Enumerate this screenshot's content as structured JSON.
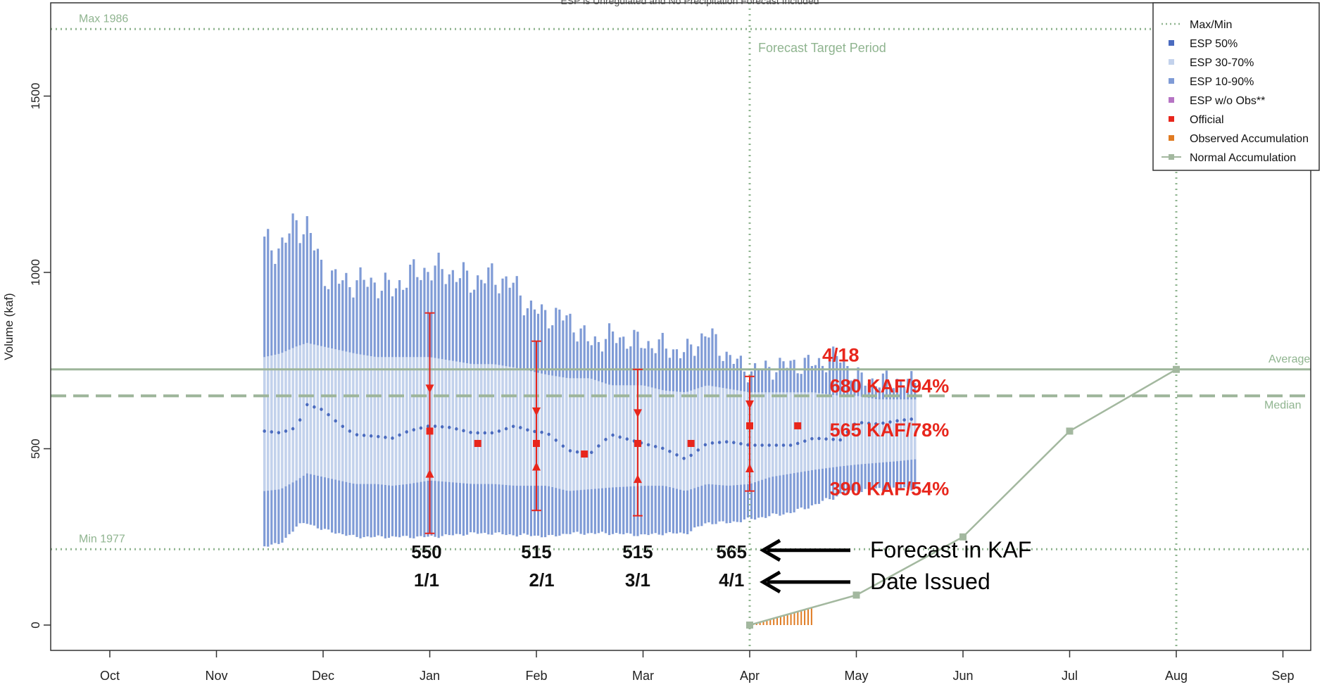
{
  "chart_data": {
    "type": "bar",
    "title": "ESP is Unregulated and No Precipitation Forecast Included",
    "ylabel": "Volume (kaf)",
    "xlabel": "",
    "ylim": [
      -70,
      1800
    ],
    "yticks": [
      0,
      500,
      1000,
      1500
    ],
    "xlim": [
      -0.5,
      11.5
    ],
    "months": [
      "Oct",
      "Nov",
      "Dec",
      "Jan",
      "Feb",
      "Mar",
      "Apr",
      "May",
      "Jun",
      "Jul",
      "Aug",
      "Sep"
    ],
    "grid": false,
    "legend_position": "top-right",
    "legend": [
      {
        "label": "Max/Min",
        "style": "dotted-line",
        "color": "#8fb48f"
      },
      {
        "label": "ESP 50%",
        "style": "square",
        "color": "#4a6bbf"
      },
      {
        "label": "ESP 30-70%",
        "style": "square",
        "color": "#c3d2ec"
      },
      {
        "label": "ESP 10-90%",
        "style": "square",
        "color": "#7f9bd6"
      },
      {
        "label": "ESP w/o Obs**",
        "style": "square",
        "color": "#b674c4"
      },
      {
        "label": "Official",
        "style": "square",
        "color": "#e8261c"
      },
      {
        "label": "Observed Accumulation",
        "style": "square",
        "color": "#e07b22"
      },
      {
        "label": "Normal Accumulation",
        "style": "line-square",
        "color": "#a3b89f"
      }
    ],
    "reference_lines": {
      "max": {
        "label": "Max 1986",
        "value": 1690
      },
      "min": {
        "label": "Min 1977",
        "value": 215
      },
      "average": {
        "label": "Average",
        "value": 725
      },
      "median": {
        "label": "Median",
        "value": 650
      }
    },
    "forecast_target_label": "Forecast Target Period",
    "forecast_target_start": 6,
    "forecast_target_end": 10,
    "esp_bands": [
      {
        "x": 1.45,
        "p10": 225,
        "p30": 380,
        "p50": 550,
        "p70": 760,
        "p90": 1080
      },
      {
        "x": 1.6,
        "p10": 230,
        "p30": 385,
        "p50": 545,
        "p70": 770,
        "p90": 1070
      },
      {
        "x": 1.75,
        "p10": 280,
        "p30": 410,
        "p50": 560,
        "p70": 790,
        "p90": 1140
      },
      {
        "x": 1.85,
        "p10": 290,
        "p30": 430,
        "p50": 625,
        "p70": 800,
        "p90": 1130
      },
      {
        "x": 2.0,
        "p10": 270,
        "p30": 420,
        "p50": 610,
        "p70": 790,
        "p90": 1000
      },
      {
        "x": 2.15,
        "p10": 260,
        "p30": 410,
        "p50": 570,
        "p70": 780,
        "p90": 975
      },
      {
        "x": 2.3,
        "p10": 250,
        "p30": 400,
        "p50": 540,
        "p70": 770,
        "p90": 975
      },
      {
        "x": 2.5,
        "p10": 250,
        "p30": 400,
        "p50": 535,
        "p70": 760,
        "p90": 970
      },
      {
        "x": 2.65,
        "p10": 250,
        "p30": 395,
        "p50": 530,
        "p70": 760,
        "p90": 950
      },
      {
        "x": 2.8,
        "p10": 250,
        "p30": 400,
        "p50": 550,
        "p70": 760,
        "p90": 990
      },
      {
        "x": 3.0,
        "p10": 250,
        "p30": 410,
        "p50": 565,
        "p70": 760,
        "p90": 1010
      },
      {
        "x": 3.2,
        "p10": 255,
        "p30": 405,
        "p50": 560,
        "p70": 750,
        "p90": 1000
      },
      {
        "x": 3.4,
        "p10": 260,
        "p30": 400,
        "p50": 545,
        "p70": 740,
        "p90": 975
      },
      {
        "x": 3.6,
        "p10": 260,
        "p30": 400,
        "p50": 545,
        "p70": 740,
        "p90": 990
      },
      {
        "x": 3.8,
        "p10": 255,
        "p30": 395,
        "p50": 565,
        "p70": 730,
        "p90": 960
      },
      {
        "x": 3.95,
        "p10": 255,
        "p30": 395,
        "p50": 550,
        "p70": 720,
        "p90": 895
      },
      {
        "x": 4.1,
        "p10": 250,
        "p30": 395,
        "p50": 545,
        "p70": 710,
        "p90": 880
      },
      {
        "x": 4.3,
        "p10": 260,
        "p30": 380,
        "p50": 495,
        "p70": 700,
        "p90": 870
      },
      {
        "x": 4.5,
        "p10": 260,
        "p30": 385,
        "p50": 485,
        "p70": 700,
        "p90": 800
      },
      {
        "x": 4.7,
        "p10": 260,
        "p30": 390,
        "p50": 540,
        "p70": 680,
        "p90": 820
      },
      {
        "x": 5.0,
        "p10": 255,
        "p30": 395,
        "p50": 515,
        "p70": 680,
        "p90": 800
      },
      {
        "x": 5.2,
        "p10": 260,
        "p30": 395,
        "p50": 500,
        "p70": 665,
        "p90": 790
      },
      {
        "x": 5.4,
        "p10": 260,
        "p30": 380,
        "p50": 470,
        "p70": 660,
        "p90": 770
      },
      {
        "x": 5.6,
        "p10": 290,
        "p30": 400,
        "p50": 515,
        "p70": 680,
        "p90": 830
      },
      {
        "x": 5.8,
        "p10": 290,
        "p30": 395,
        "p50": 520,
        "p70": 670,
        "p90": 760
      },
      {
        "x": 6.0,
        "p10": 300,
        "p30": 400,
        "p50": 510,
        "p70": 660,
        "p90": 720
      },
      {
        "x": 6.2,
        "p10": 310,
        "p30": 420,
        "p50": 510,
        "p70": 660,
        "p90": 730
      },
      {
        "x": 6.4,
        "p10": 320,
        "p30": 430,
        "p50": 510,
        "p70": 660,
        "p90": 740
      },
      {
        "x": 6.6,
        "p10": 340,
        "p30": 440,
        "p50": 530,
        "p70": 660,
        "p90": 740
      },
      {
        "x": 6.85,
        "p10": 370,
        "p30": 450,
        "p50": 525,
        "p70": 650,
        "p90": 760
      },
      {
        "x": 7.0,
        "p10": 380,
        "p30": 455,
        "p50": 575,
        "p70": 650,
        "p90": 700
      },
      {
        "x": 7.2,
        "p10": 385,
        "p30": 460,
        "p50": 570,
        "p70": 640,
        "p90": 690
      },
      {
        "x": 7.4,
        "p10": 385,
        "p30": 465,
        "p50": 580,
        "p70": 640,
        "p90": 695
      },
      {
        "x": 7.55,
        "p10": 390,
        "p30": 470,
        "p50": 585,
        "p70": 640,
        "p90": 685
      }
    ],
    "official": [
      {
        "x": 3.0,
        "value": 550,
        "p30": 430,
        "p70": 670,
        "p10": 260,
        "p90": 885
      },
      {
        "x": 3.45,
        "value": 515
      },
      {
        "x": 4.0,
        "value": 515,
        "p30": 450,
        "p70": 605,
        "p10": 325,
        "p90": 805
      },
      {
        "x": 4.45,
        "value": 485
      },
      {
        "x": 4.95,
        "value": 515,
        "p30": 415,
        "p70": 600,
        "p10": 310,
        "p90": 725
      },
      {
        "x": 5.45,
        "value": 515
      },
      {
        "x": 6.0,
        "value": 565,
        "p30": 445,
        "p70": 625,
        "p10": 380,
        "p90": 705
      },
      {
        "x": 6.45,
        "value": 565
      }
    ],
    "observed_accumulation": {
      "x_start": 6.0,
      "x_end": 6.58,
      "y_end": 50
    },
    "normal_accumulation": [
      {
        "x": 6.0,
        "y": 0
      },
      {
        "x": 7.0,
        "y": 85
      },
      {
        "x": 8.0,
        "y": 250
      },
      {
        "x": 9.0,
        "y": 550
      },
      {
        "x": 10.0,
        "y": 725
      }
    ]
  },
  "annotations": {
    "red": [
      {
        "text": "4/18",
        "x": 6.68,
        "y": 748
      },
      {
        "text": "680 KAF/94%",
        "x": 6.75,
        "y": 660
      },
      {
        "text": "565 KAF/78%",
        "x": 6.75,
        "y": 535
      },
      {
        "text": "390 KAF/54%",
        "x": 6.75,
        "y": 368
      }
    ],
    "forecasts_kaf": [
      {
        "text": "550",
        "x": 2.97,
        "y": 190
      },
      {
        "text": "515",
        "x": 4.0,
        "y": 190
      },
      {
        "text": "515",
        "x": 4.95,
        "y": 190
      },
      {
        "text": "565",
        "x": 5.83,
        "y": 190
      }
    ],
    "dates_issued": [
      {
        "text": "1/1",
        "x": 2.97,
        "y": 110
      },
      {
        "text": "2/1",
        "x": 4.05,
        "y": 110
      },
      {
        "text": "3/1",
        "x": 4.95,
        "y": 110
      },
      {
        "text": "4/1",
        "x": 5.83,
        "y": 110
      }
    ],
    "arrow_labels": [
      {
        "text": "Forecast in KAF",
        "y": 212
      },
      {
        "text": "Date Issued",
        "y": 122
      }
    ]
  }
}
